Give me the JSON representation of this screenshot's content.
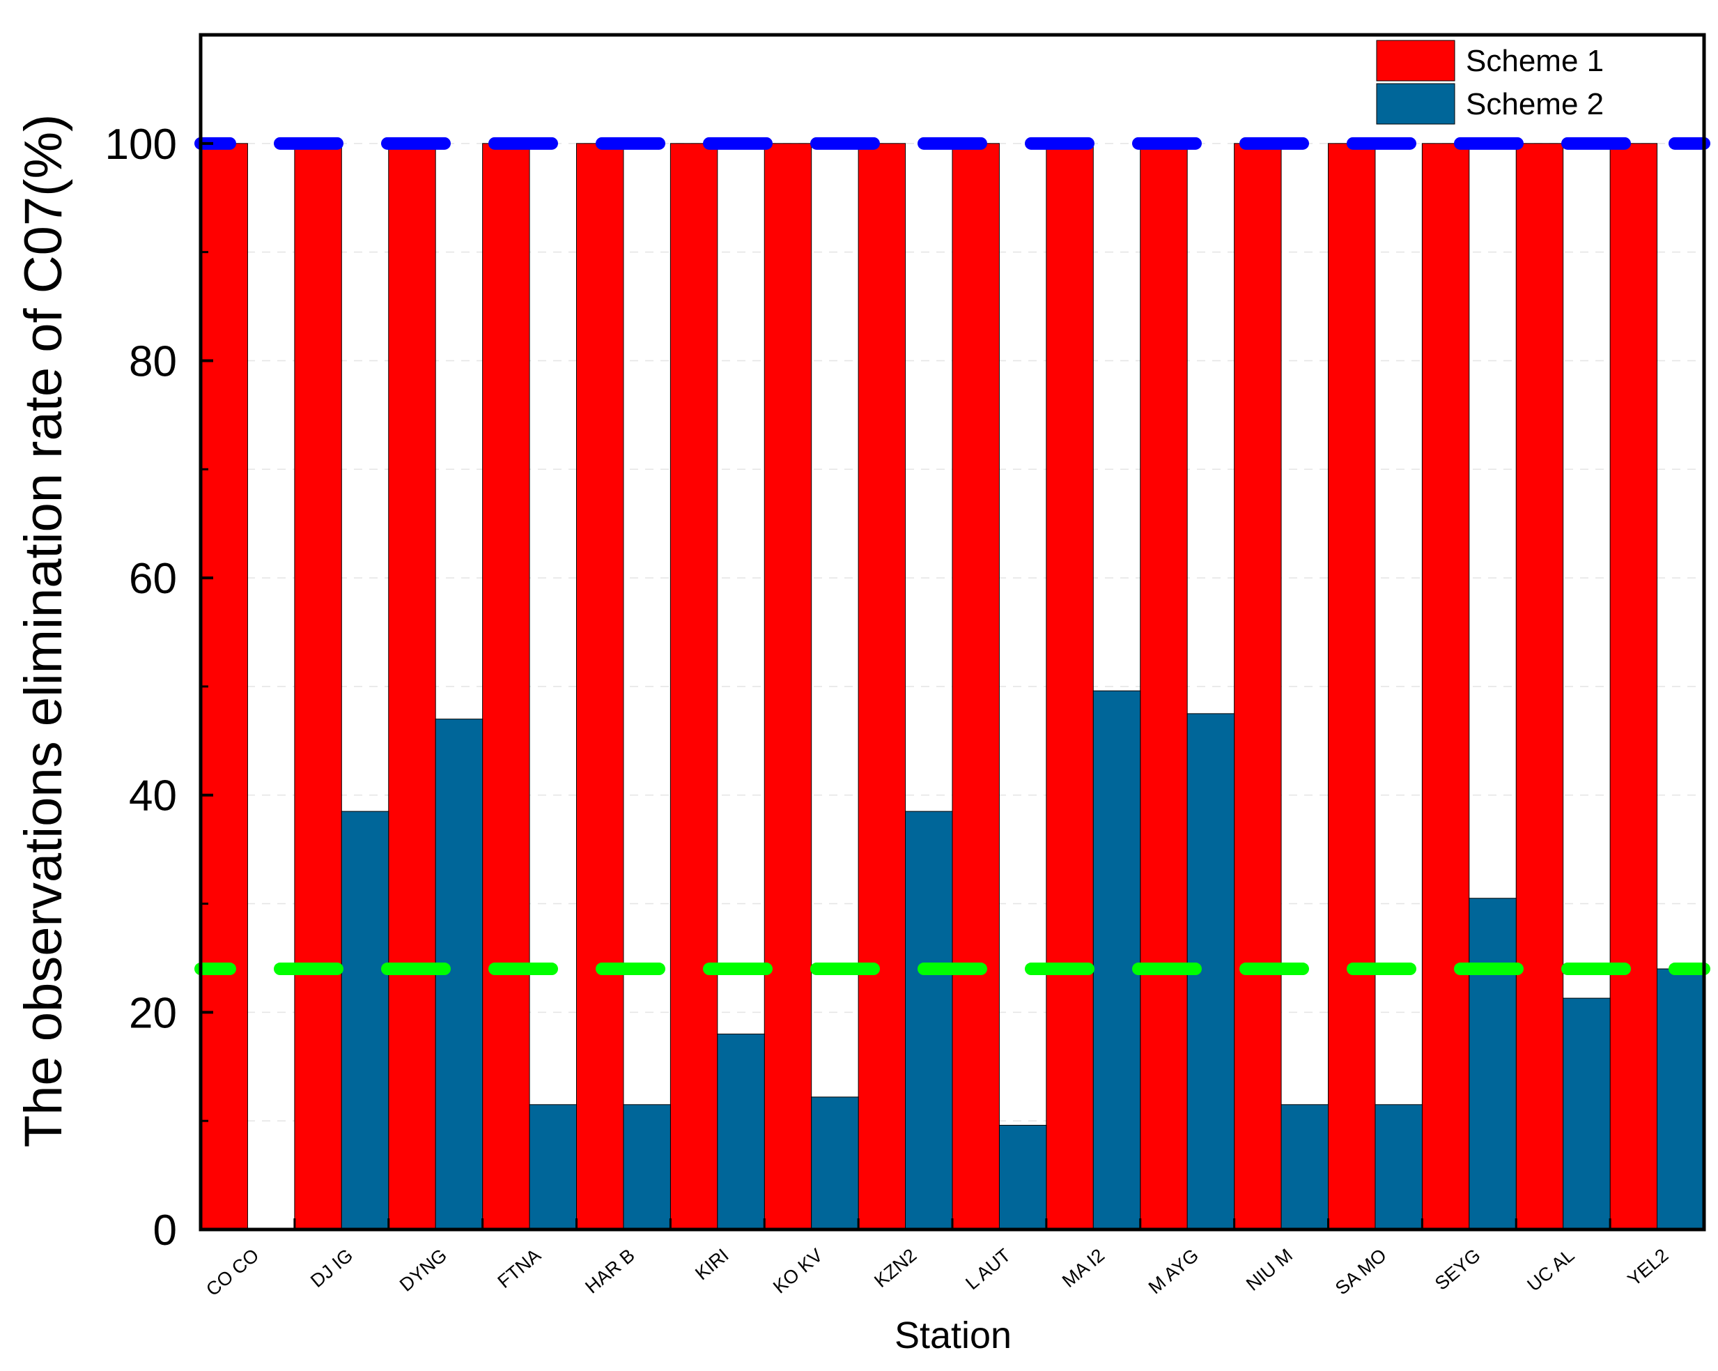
{
  "chart_data": {
    "type": "bar",
    "title": "",
    "xlabel": "Station",
    "ylabel": "The observations elimination rate of C07(%)",
    "ylim": [
      0,
      110
    ],
    "yticks": [
      "0",
      "20",
      "40",
      "60",
      "80",
      "100"
    ],
    "ytick_values": [
      0,
      20,
      40,
      60,
      80,
      100
    ],
    "minor_ytick_values": [
      10,
      30,
      50,
      70,
      90
    ],
    "grid": true,
    "legend_position": "top-right",
    "categories": [
      "CO CO",
      "DJ IG",
      "DYNG",
      "FTNA",
      "HAR B",
      "KIRI",
      "KO KV",
      "KZN2",
      "L AUT",
      "MA I2",
      "M AYG",
      "NIU M",
      "SA MO",
      "SEYG",
      "UC AL",
      "YEL2"
    ],
    "series": [
      {
        "name": "Scheme 1",
        "color": "#ff0000",
        "values": [
          100,
          100,
          100,
          100,
          100,
          100,
          100,
          100,
          100,
          100,
          100,
          100,
          100,
          100,
          100,
          100
        ]
      },
      {
        "name": "Scheme 2",
        "color": "#006699",
        "values": [
          0,
          38.5,
          47,
          11.5,
          11.5,
          18,
          12.2,
          38.5,
          9.6,
          49.6,
          47.5,
          11.5,
          11.5,
          30.5,
          21.3,
          24
        ]
      }
    ],
    "reference_lines": [
      {
        "name": "blue-dashed-line",
        "value": 100,
        "color": "#0000ff"
      },
      {
        "name": "green-dashed-line",
        "value": 24,
        "color": "#00ff00"
      }
    ]
  }
}
